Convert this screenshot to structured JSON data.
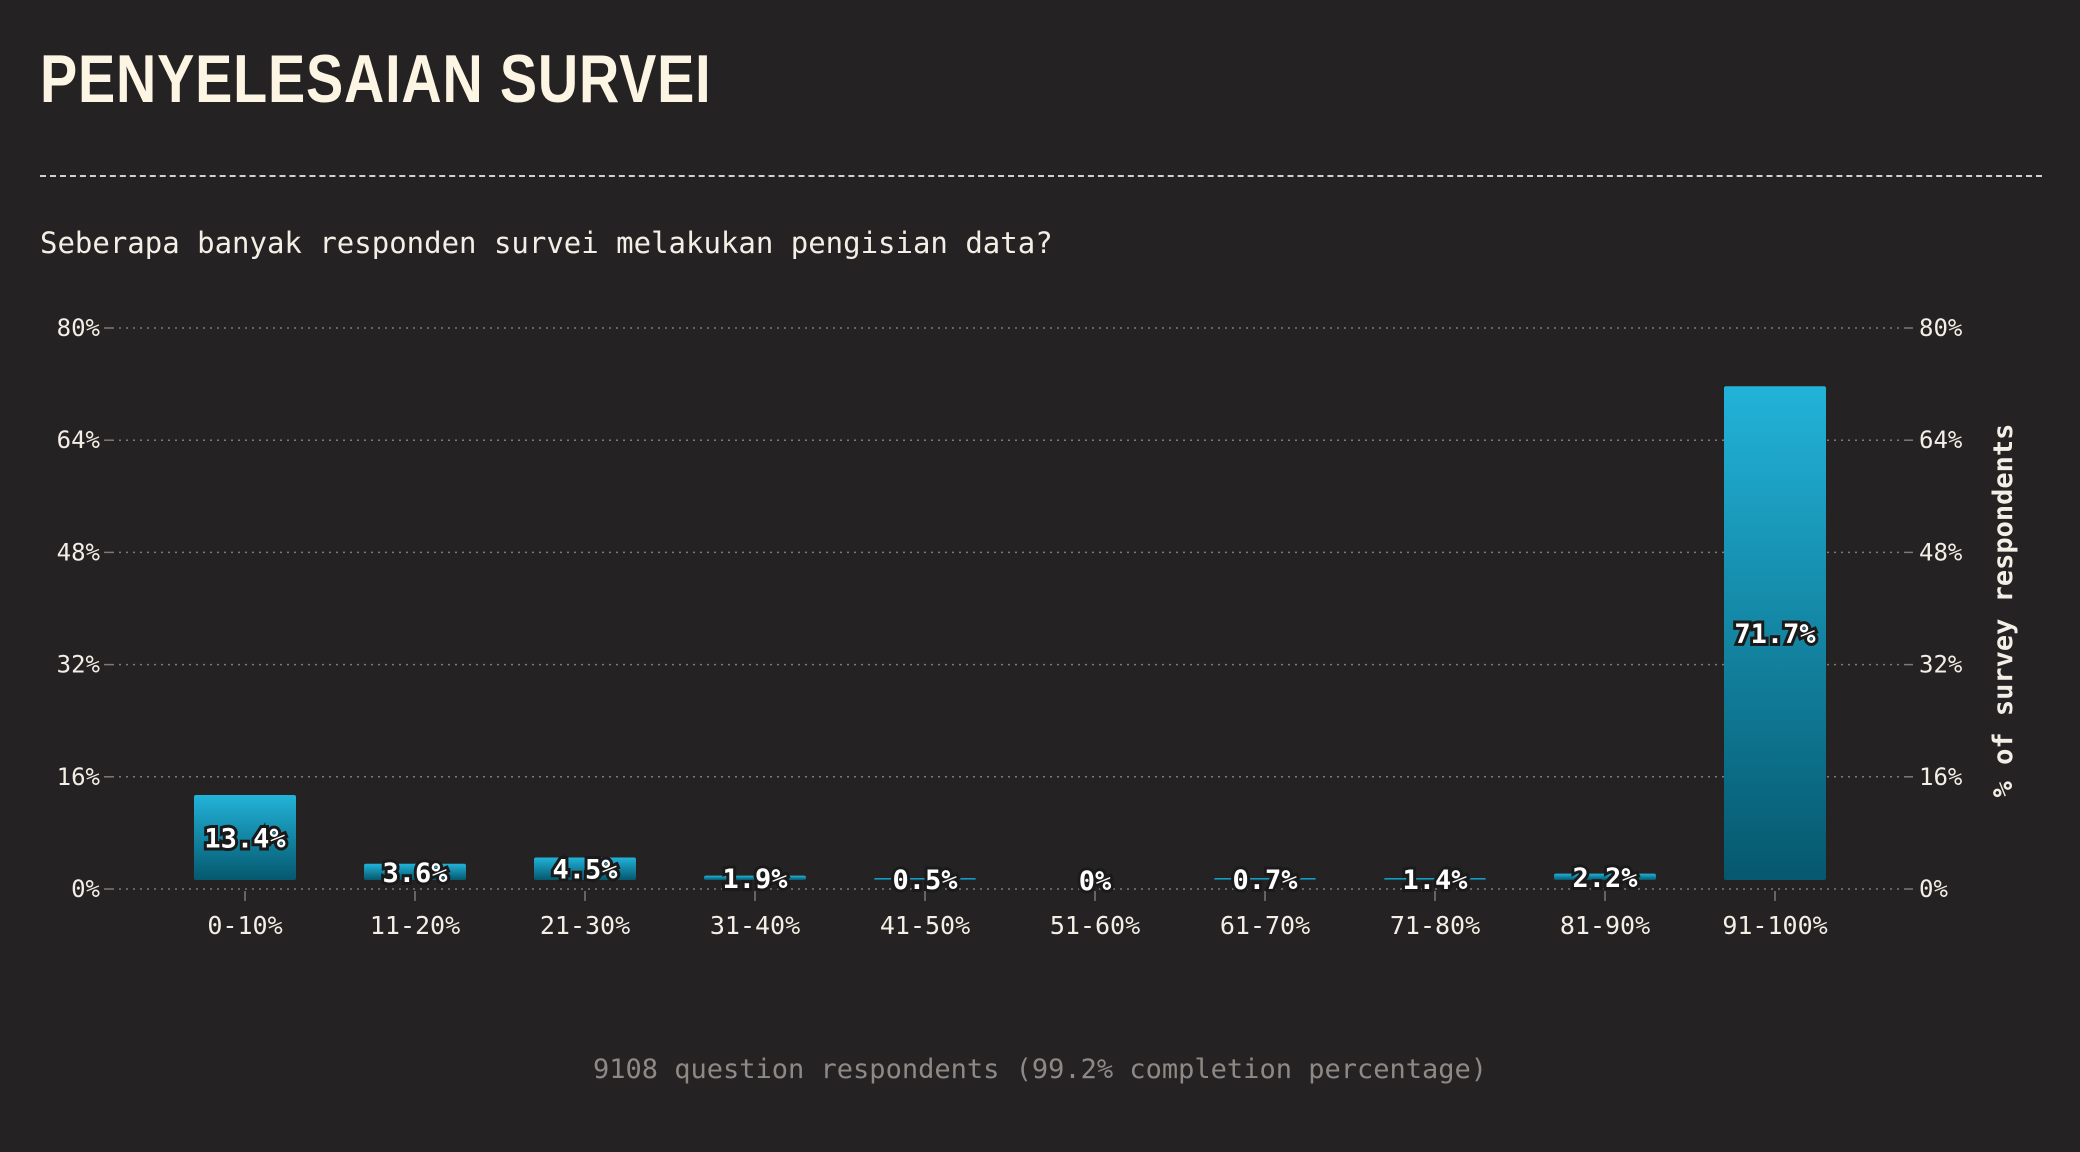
{
  "header": {
    "title": "PENYELESAIAN SURVEI",
    "subtitle": "Seberapa banyak responden survei melakukan pengisian data?"
  },
  "footer": {
    "note": "9108 question respondents (99.2% completion percentage)"
  },
  "colors": {
    "background": "#252223",
    "bar_top": "#22b3d9",
    "bar_bottom": "#05586e",
    "grid": "#7d7a77",
    "text": "#f3efe6"
  },
  "chart_data": {
    "type": "bar",
    "title": "PENYELESAIAN SURVEI",
    "subtitle": "Seberapa banyak responden survei melakukan pengisian data?",
    "categories": [
      "0-10%",
      "11-20%",
      "21-30%",
      "31-40%",
      "41-50%",
      "51-60%",
      "61-70%",
      "71-80%",
      "81-90%",
      "91-100%"
    ],
    "values": [
      13.4,
      3.6,
      4.5,
      1.9,
      0.5,
      0,
      0.7,
      1.4,
      2.2,
      71.7
    ],
    "value_labels": [
      "13.4%",
      "3.6%",
      "4.5%",
      "1.9%",
      "0.5%",
      "0%",
      "0.7%",
      "1.4%",
      "2.2%",
      "71.7%"
    ],
    "ylim": [
      0,
      80
    ],
    "yticks": [
      0,
      16,
      32,
      48,
      64,
      80
    ],
    "ytick_labels": [
      "0%",
      "16%",
      "32%",
      "48%",
      "64%",
      "80%"
    ],
    "ylabel_right": "% of survey respondents",
    "xlabel": "",
    "grid": true,
    "legend": "none"
  }
}
